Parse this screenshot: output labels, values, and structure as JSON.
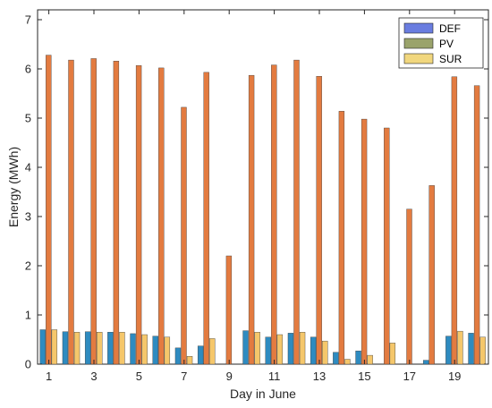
{
  "chart_data": {
    "type": "bar",
    "title": "",
    "xlabel": "Day in June",
    "ylabel": "Energy (MWh)",
    "ylim": [
      0,
      7.2
    ],
    "yticks": [
      0,
      1,
      2,
      3,
      4,
      5,
      6,
      7
    ],
    "x": [
      1,
      2,
      3,
      4,
      5,
      6,
      7,
      8,
      9,
      10,
      11,
      12,
      13,
      14,
      15,
      16,
      17,
      18,
      19,
      20
    ],
    "xtick_labels": [
      "1",
      "3",
      "5",
      "7",
      "9",
      "11",
      "13",
      "15",
      "17",
      "19"
    ],
    "grid": false,
    "legend_position": "top-right",
    "series": [
      {
        "name": "DEF",
        "color": "#2E8BC0",
        "values": [
          0.7,
          0.66,
          0.66,
          0.65,
          0.62,
          0.57,
          0.33,
          0.37,
          0.0,
          0.68,
          0.55,
          0.63,
          0.55,
          0.24,
          0.27,
          0.0,
          0.0,
          0.08,
          0.57,
          0.63
        ]
      },
      {
        "name": "PV",
        "color": "#E37B40",
        "values": [
          6.28,
          6.18,
          6.21,
          6.16,
          6.07,
          6.02,
          5.22,
          5.93,
          2.2,
          5.87,
          6.08,
          6.18,
          5.85,
          5.14,
          4.98,
          4.8,
          3.15,
          3.63,
          5.84,
          5.66
        ]
      },
      {
        "name": "SUR",
        "color": "#F5C76B",
        "values": [
          0.7,
          0.65,
          0.65,
          0.65,
          0.6,
          0.55,
          0.16,
          0.52,
          0.0,
          0.65,
          0.6,
          0.65,
          0.47,
          0.1,
          0.18,
          0.43,
          0.0,
          0.0,
          0.67,
          0.55
        ]
      }
    ],
    "legend": [
      {
        "label": "DEF",
        "swatch": "#6A7DE0"
      },
      {
        "label": "PV",
        "swatch": "#9AA36B"
      },
      {
        "label": "SUR",
        "swatch": "#F1D77E"
      }
    ]
  }
}
